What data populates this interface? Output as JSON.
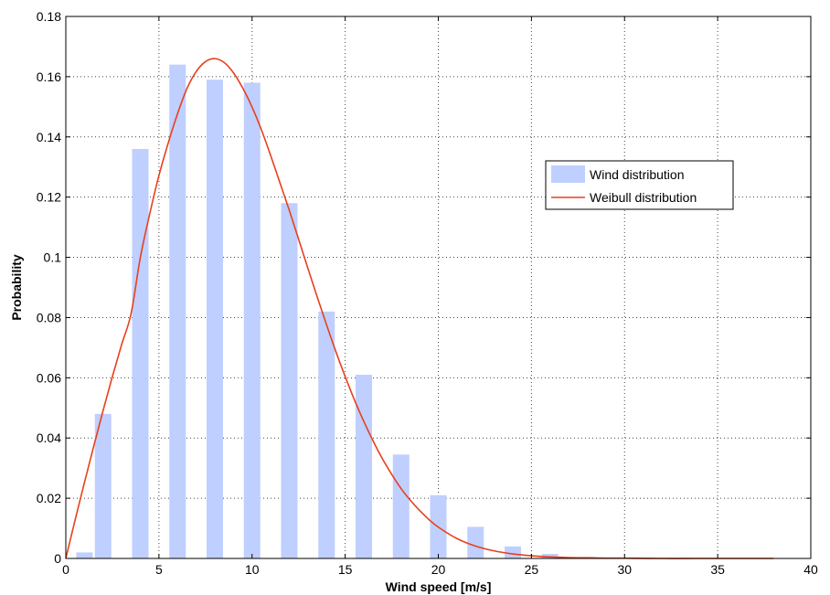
{
  "chart_data": {
    "type": "bar",
    "xlabel": "Wind speed [m/s]",
    "ylabel": "Probability",
    "xlim": [
      0,
      40
    ],
    "ylim": [
      0,
      0.18
    ],
    "grid": true,
    "legend_position": "right",
    "x_ticks": [
      0,
      5,
      10,
      15,
      20,
      25,
      30,
      35,
      40
    ],
    "x_tick_labels": [
      "0",
      "5",
      "10",
      "15",
      "20",
      "25",
      "30",
      "35",
      "40"
    ],
    "y_ticks": [
      0,
      0.02,
      0.04,
      0.06,
      0.08,
      0.1,
      0.12,
      0.14,
      0.16,
      0.18
    ],
    "y_tick_labels": [
      "0",
      "0.02",
      "0.04",
      "0.06",
      "0.08",
      "0.1",
      "0.12",
      "0.14",
      "0.16",
      "0.18"
    ],
    "series": [
      {
        "name": "Wind distribution",
        "kind": "bar",
        "color": "#bfcfff",
        "x": [
          1,
          2,
          4,
          6,
          8,
          10,
          12,
          14,
          16,
          18,
          20,
          22,
          24,
          26,
          28,
          30,
          32,
          34,
          36
        ],
        "values": [
          0.002,
          0.048,
          0.136,
          0.164,
          0.159,
          0.158,
          0.118,
          0.082,
          0.061,
          0.0345,
          0.021,
          0.0105,
          0.004,
          0.0015,
          0.0005,
          0.0002,
          0.0001,
          0.0001,
          0.0001
        ]
      },
      {
        "name": "Weibull distribution",
        "kind": "line",
        "color": "#e8401c",
        "x": [
          0,
          0.5,
          1,
          1.5,
          2,
          2.5,
          3,
          3.5,
          4,
          4.5,
          5,
          5.5,
          6,
          6.5,
          7,
          7.5,
          8,
          8.5,
          9,
          9.5,
          10,
          10.5,
          11,
          11.5,
          12,
          12.5,
          13,
          13.5,
          14,
          14.5,
          15,
          15.5,
          16,
          16.5,
          17,
          17.5,
          18,
          18.5,
          19,
          19.5,
          20,
          21,
          22,
          23,
          24,
          25,
          26,
          27,
          28,
          29,
          30,
          32,
          34,
          36,
          38
        ],
        "values": [
          0,
          0.0128,
          0.0252,
          0.0373,
          0.0491,
          0.0604,
          0.0711,
          0.0812,
          0.0999,
          0.1143,
          0.1272,
          0.138,
          0.1477,
          0.156,
          0.1617,
          0.165,
          0.166,
          0.1647,
          0.1613,
          0.1562,
          0.1499,
          0.1424,
          0.1338,
          0.1247,
          0.1156,
          0.106,
          0.0963,
          0.0868,
          0.0776,
          0.0687,
          0.0604,
          0.0526,
          0.0455,
          0.039,
          0.0331,
          0.0279,
          0.0232,
          0.0193,
          0.0159,
          0.0129,
          0.0104,
          0.0066,
          0.0041,
          0.0025,
          0.0015,
          0.0009,
          0.0005,
          0.0003,
          0.0002,
          0.0001,
          0.0001,
          0,
          0,
          0,
          0
        ]
      }
    ]
  }
}
